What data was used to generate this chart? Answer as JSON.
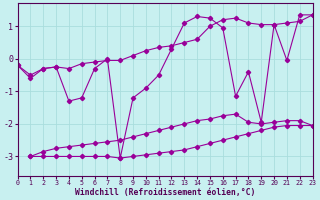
{
  "xlabel": "Windchill (Refroidissement éolien,°C)",
  "xlim": [
    0,
    23
  ],
  "ylim": [
    -3.6,
    1.7
  ],
  "yticks": [
    -3,
    -2,
    -1,
    0,
    1
  ],
  "xticks": [
    0,
    1,
    2,
    3,
    4,
    5,
    6,
    7,
    8,
    9,
    10,
    11,
    12,
    13,
    14,
    15,
    16,
    17,
    18,
    19,
    20,
    21,
    22,
    23
  ],
  "bg_color": "#c8f0f0",
  "line_color": "#990099",
  "grid_color": "#aadddd",
  "series": [
    {
      "x": [
        0,
        1,
        2,
        3,
        4,
        5,
        6,
        7,
        8,
        9,
        10,
        11,
        12,
        13,
        14,
        15,
        16,
        17,
        18,
        19,
        20,
        21,
        22,
        23
      ],
      "y": [
        -0.2,
        -0.5,
        -0.3,
        -0.25,
        -0.3,
        -0.15,
        -0.1,
        -0.05,
        -0.05,
        0.1,
        0.25,
        0.35,
        0.4,
        0.5,
        0.6,
        1.0,
        1.2,
        1.25,
        1.1,
        1.05,
        1.05,
        1.1,
        1.15,
        1.35
      ]
    },
    {
      "x": [
        0,
        1,
        2,
        3,
        4,
        5,
        6,
        7,
        8,
        9,
        10,
        11,
        12,
        13,
        14,
        15,
        16,
        17,
        18,
        19,
        20,
        21,
        22,
        23
      ],
      "y": [
        -0.2,
        -0.6,
        -0.3,
        -0.25,
        -1.3,
        -1.2,
        -0.3,
        0.0,
        -3.05,
        -1.2,
        -0.9,
        -0.5,
        0.3,
        1.1,
        1.3,
        1.25,
        0.95,
        -1.15,
        -0.4,
        -1.95,
        1.05,
        -0.05,
        1.35,
        1.35
      ]
    },
    {
      "x": [
        1,
        2,
        3,
        4,
        5,
        6,
        7,
        8,
        9,
        10,
        11,
        12,
        13,
        14,
        15,
        16,
        17,
        18,
        19,
        20,
        21,
        22,
        23
      ],
      "y": [
        -3.0,
        -2.85,
        -2.75,
        -2.7,
        -2.65,
        -2.6,
        -2.55,
        -2.5,
        -2.4,
        -2.3,
        -2.2,
        -2.1,
        -2.0,
        -1.9,
        -1.85,
        -1.75,
        -1.7,
        -1.95,
        -2.0,
        -1.95,
        -1.9,
        -1.9,
        -2.05
      ]
    },
    {
      "x": [
        1,
        2,
        3,
        4,
        5,
        6,
        7,
        8,
        9,
        10,
        11,
        12,
        13,
        14,
        15,
        16,
        17,
        18,
        19,
        20,
        21,
        22,
        23
      ],
      "y": [
        -3.0,
        -3.0,
        -3.0,
        -3.0,
        -3.0,
        -3.0,
        -3.0,
        -3.05,
        -3.0,
        -2.95,
        -2.9,
        -2.85,
        -2.8,
        -2.7,
        -2.6,
        -2.5,
        -2.4,
        -2.3,
        -2.2,
        -2.1,
        -2.05,
        -2.05,
        -2.05
      ]
    }
  ]
}
